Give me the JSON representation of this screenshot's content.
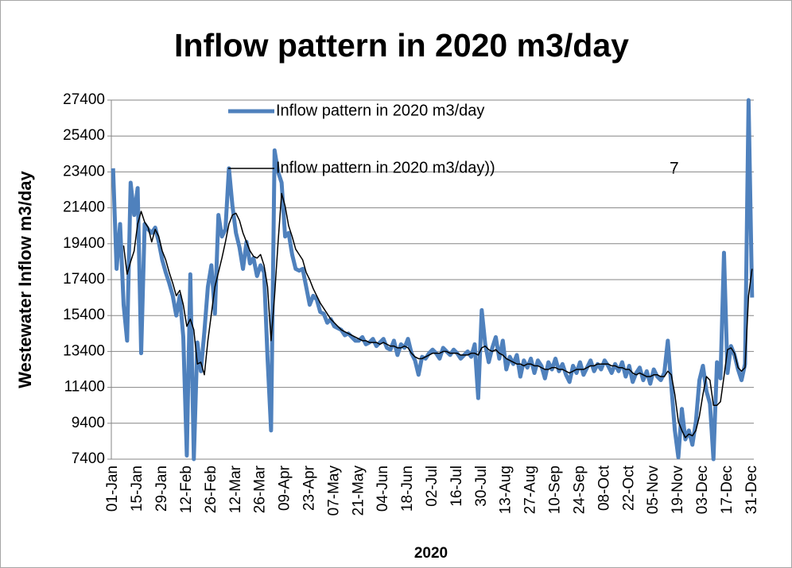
{
  "chart_data": {
    "type": "line",
    "title": "Inflow pattern in 2020 m3/day",
    "x_label": "2020",
    "y_label": "Westewater Inflow m3/day",
    "annotation": "7",
    "categories": [
      "01-Jan",
      null,
      null,
      null,
      null,
      null,
      null,
      "15-Jan",
      null,
      null,
      null,
      null,
      null,
      null,
      "29-Jan",
      null,
      null,
      null,
      null,
      null,
      null,
      "12-Feb",
      null,
      null,
      null,
      null,
      null,
      null,
      "26-Feb",
      null,
      null,
      null,
      null,
      null,
      null,
      "12-Mar",
      null,
      null,
      null,
      null,
      null,
      null,
      "26-Mar",
      null,
      null,
      null,
      null,
      null,
      null,
      "09-Apr",
      null,
      null,
      null,
      null,
      null,
      null,
      "23-Apr",
      null,
      null,
      null,
      null,
      null,
      null,
      "07-May",
      null,
      null,
      null,
      null,
      null,
      null,
      "21-May",
      null,
      null,
      null,
      null,
      null,
      null,
      "04-Jun",
      null,
      null,
      null,
      null,
      null,
      null,
      "18-Jun",
      null,
      null,
      null,
      null,
      null,
      null,
      "02-Jul",
      null,
      null,
      null,
      null,
      null,
      null,
      "16-Jul",
      null,
      null,
      null,
      null,
      null,
      null,
      "30-Jul",
      null,
      null,
      null,
      null,
      null,
      null,
      "13-Aug",
      null,
      null,
      null,
      null,
      null,
      null,
      "27-Aug",
      null,
      null,
      null,
      null,
      null,
      null,
      "10-Sep",
      null,
      null,
      null,
      null,
      null,
      null,
      "24-Sep",
      null,
      null,
      null,
      null,
      null,
      null,
      "08-Oct",
      null,
      null,
      null,
      null,
      null,
      null,
      "22-Oct",
      null,
      null,
      null,
      null,
      null,
      null,
      "05-Nov",
      null,
      null,
      null,
      null,
      null,
      null,
      "19-Nov",
      null,
      null,
      null,
      null,
      null,
      null,
      "03-Dec",
      null,
      null,
      null,
      null,
      null,
      null,
      "17-Dec",
      null,
      null,
      null,
      null,
      null,
      null,
      "31-Dec"
    ],
    "series": [
      {
        "name": "Inflow pattern in 2020 m3/day",
        "color": "#4f81bd",
        "width": 5,
        "values": [
          23600,
          18000,
          20500,
          16000,
          14000,
          22800,
          21000,
          22500,
          13300,
          20500,
          20200,
          20000,
          20300,
          19500,
          18500,
          17800,
          17200,
          16500,
          15400,
          16500,
          14200,
          7600,
          17700,
          7400,
          13900,
          12300,
          14500,
          17000,
          18200,
          15500,
          21000,
          19800,
          20200,
          23600,
          21500,
          20000,
          19200,
          18000,
          19500,
          18300,
          18600,
          17600,
          18200,
          17800,
          13000,
          9000,
          24600,
          23400,
          22800,
          19800,
          20000,
          18800,
          18000,
          17900,
          18000,
          17000,
          16000,
          16500,
          16300,
          15600,
          15500,
          15000,
          15200,
          14800,
          14700,
          14600,
          14300,
          14400,
          14200,
          14000,
          14000,
          14200,
          13800,
          13900,
          14100,
          13700,
          13900,
          14100,
          13600,
          13500,
          14000,
          13200,
          13800,
          13600,
          14100,
          13300,
          12900,
          12100,
          13100,
          13000,
          13300,
          13500,
          13300,
          13000,
          13600,
          13400,
          13200,
          13500,
          13300,
          13000,
          13200,
          13400,
          13100,
          13800,
          10800,
          15700,
          13800,
          12800,
          13600,
          14200,
          13000,
          14000,
          12400,
          13100,
          12700,
          13200,
          12000,
          12900,
          12500,
          13000,
          12200,
          12900,
          12600,
          11900,
          12800,
          12400,
          13000,
          12300,
          12700,
          12100,
          11700,
          12600,
          12200,
          12800,
          12100,
          12500,
          12900,
          12300,
          12700,
          12400,
          12900,
          12600,
          12200,
          12700,
          12300,
          12800,
          12000,
          12600,
          11700,
          12200,
          12500,
          11800,
          12300,
          11600,
          12400,
          12000,
          11800,
          12200,
          14000,
          11500,
          9000,
          7500,
          10200,
          8500,
          9000,
          8200,
          9500,
          11800,
          12600,
          11200,
          10500,
          7400,
          12800,
          11900,
          18900,
          12200,
          13700,
          13200,
          12400,
          11800,
          12700,
          27400,
          16400
        ]
      },
      {
        "name": "Inflow pattern in 2020 m3/day))",
        "color": "#000000",
        "width": 1.5,
        "values": [
          null,
          null,
          null,
          19300,
          17700,
          18400,
          19000,
          20500,
          21200,
          20600,
          20300,
          19500,
          20200,
          19800,
          19000,
          18500,
          17800,
          17200,
          16500,
          16800,
          16000,
          14800,
          15200,
          14600,
          12700,
          12800,
          12100,
          14000,
          15500,
          17000,
          17800,
          18600,
          19500,
          20500,
          21000,
          21100,
          20700,
          20000,
          19500,
          19000,
          18700,
          18600,
          18800,
          18200,
          17000,
          14000,
          16500,
          19500,
          22200,
          21500,
          20400,
          19800,
          19100,
          18800,
          18500,
          17800,
          17400,
          16900,
          16500,
          16100,
          15800,
          15500,
          15200,
          15000,
          14800,
          14600,
          14500,
          14400,
          14300,
          14200,
          14100,
          14000,
          14000,
          13900,
          13900,
          13900,
          13800,
          13900,
          13800,
          13700,
          13700,
          13600,
          13600,
          13700,
          13600,
          13300,
          13100,
          13000,
          13000,
          13100,
          13200,
          13300,
          13300,
          13300,
          13400,
          13400,
          13300,
          13300,
          13300,
          13200,
          13200,
          13200,
          13300,
          13300,
          13200,
          13600,
          13700,
          13500,
          13400,
          13500,
          13300,
          13200,
          13000,
          12900,
          12800,
          12700,
          12700,
          12600,
          12700,
          12700,
          12600,
          12600,
          12500,
          12400,
          12400,
          12500,
          12500,
          12400,
          12400,
          12300,
          12200,
          12300,
          12400,
          12400,
          12400,
          12500,
          12600,
          12600,
          12700,
          12700,
          12700,
          12700,
          12600,
          12600,
          12500,
          12500,
          12400,
          12400,
          12200,
          12100,
          12200,
          12100,
          12000,
          12000,
          12100,
          12100,
          12000,
          12000,
          12300,
          12100,
          11000,
          9500,
          9000,
          8600,
          8800,
          8700,
          9000,
          9800,
          11000,
          12000,
          11800,
          10400,
          10400,
          10600,
          12000,
          13500,
          13600,
          13300,
          12500,
          12300,
          12500,
          16500,
          18000
        ]
      }
    ],
    "ylim": [
      7400,
      27400
    ],
    "yticks": [
      7400,
      9400,
      11400,
      13400,
      15400,
      17400,
      19400,
      21400,
      23400,
      25400,
      27400
    ],
    "grid": true
  }
}
